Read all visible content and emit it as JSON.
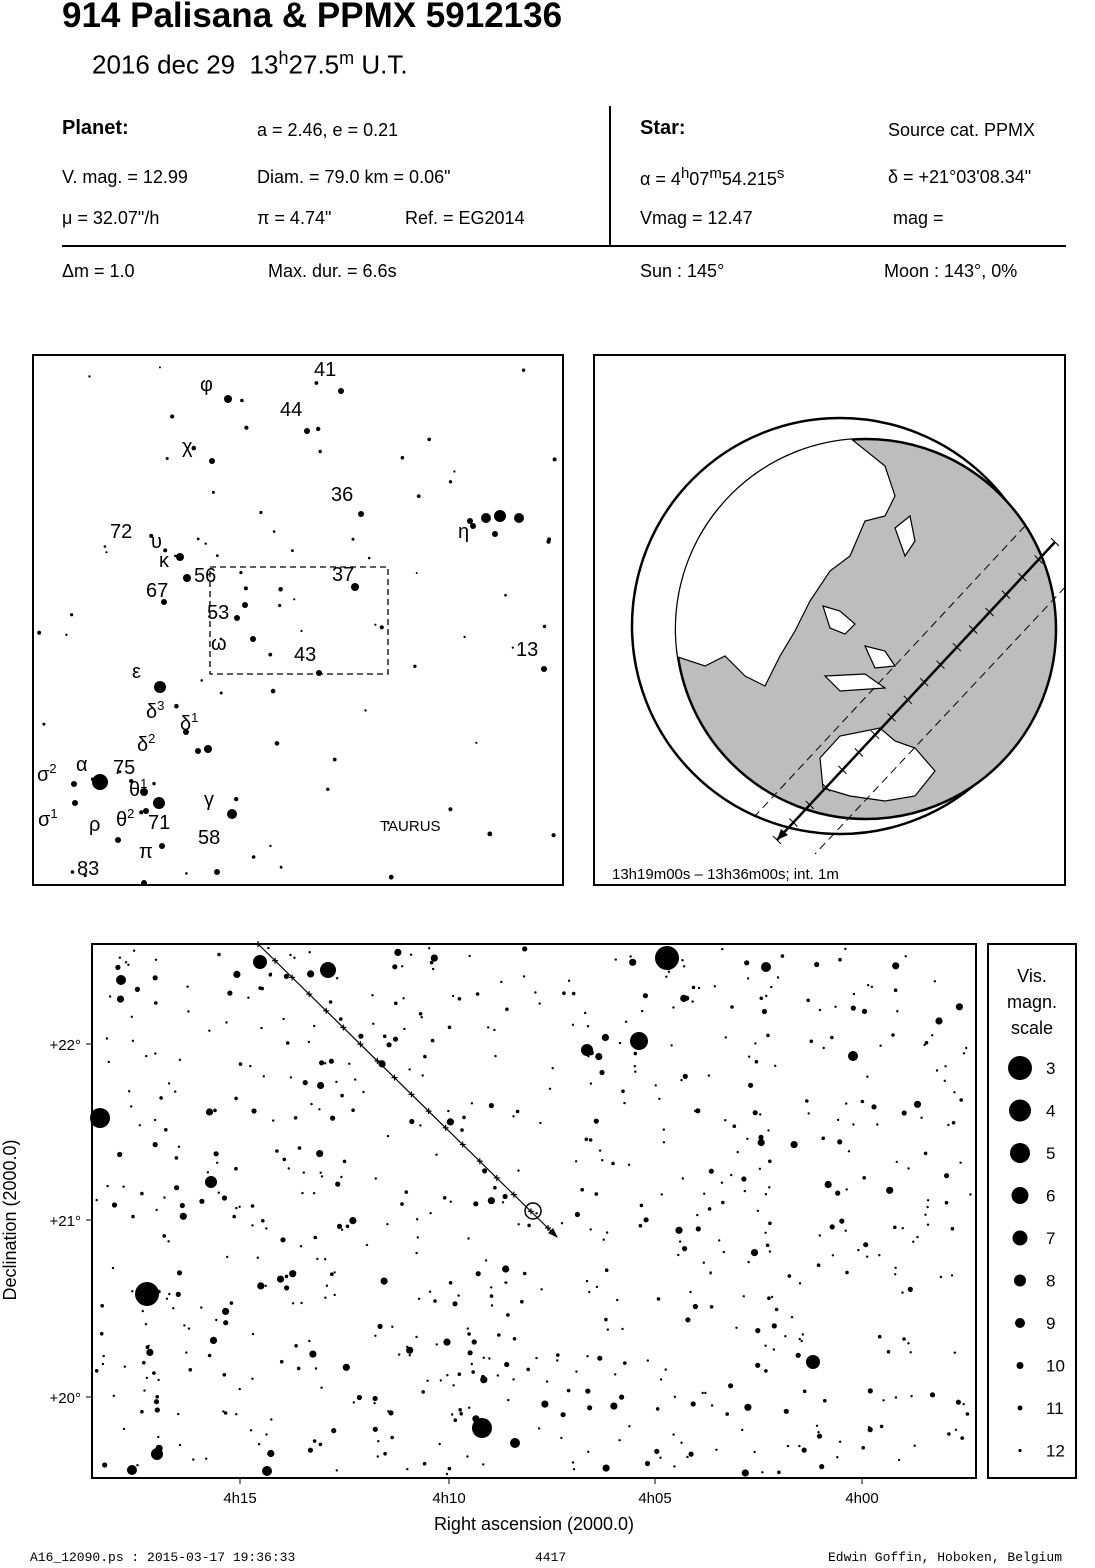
{
  "title": "914 Palisana  &  PPMX 5912136",
  "subtitle": {
    "date": "2016 dec 29",
    "time_h": "13",
    "time_hsup": "h",
    "time_m": "27.5",
    "time_msup": "m",
    "ut": "U.T."
  },
  "planet": {
    "heading": "Planet:",
    "orbit": "a = 2.46, e = 0.21",
    "vmag": "V. mag. = 12.99",
    "diam": "Diam. = 79.0 km = 0.06\"",
    "mu": "μ =  32.07\"/h",
    "pi": "π =  4.74\"",
    "ref": "Ref. = EG2014"
  },
  "star": {
    "heading": "Star:",
    "source": "Source cat.  PPMX",
    "alpha_prefix": "α =  4",
    "alpha_h": "h",
    "alpha_m_val": "07",
    "alpha_m": "m",
    "alpha_s_val": "54.215",
    "alpha_s": "s",
    "delta": "δ = +21°03'08.34\"",
    "vmag": "Vmag = 12.47",
    "mag": "mag ="
  },
  "event": {
    "dm": "Δm = 1.0",
    "maxdur": "Max. dur. = 6.6s",
    "sun": "Sun : 145°",
    "moon": "Moon : 143°,  0%"
  },
  "finder": {
    "constellation": "TAURUS",
    "labels": [
      {
        "t": "φ"
      },
      {
        "t": "41"
      },
      {
        "t": "44"
      },
      {
        "t": "χ"
      },
      {
        "t": "36"
      },
      {
        "t": "η"
      },
      {
        "t": "72"
      },
      {
        "t": "υ"
      },
      {
        "t": "κ"
      },
      {
        "t": "67"
      },
      {
        "t": "56"
      },
      {
        "t": "37"
      },
      {
        "t": "53"
      },
      {
        "t": "ω"
      },
      {
        "t": "43"
      },
      {
        "t": "13"
      },
      {
        "t": "ε"
      },
      {
        "t": "δ3"
      },
      {
        "t": "δ1"
      },
      {
        "t": "δ2"
      },
      {
        "t": "α"
      },
      {
        "t": "σ2"
      },
      {
        "t": "75"
      },
      {
        "t": "θ1"
      },
      {
        "t": "γ"
      },
      {
        "t": "σ1"
      },
      {
        "t": "ρ"
      },
      {
        "t": "θ2"
      },
      {
        "t": "71"
      },
      {
        "t": "58"
      },
      {
        "t": "π"
      },
      {
        "t": "83"
      }
    ]
  },
  "globe": {
    "caption": "13h19m00s – 13h36m00s; int.  1m"
  },
  "chart": {
    "y_ticks": [
      "+22°",
      "+21°",
      "+20°"
    ],
    "x_ticks": [
      "4h15",
      "4h10",
      "4h05",
      "4h00"
    ],
    "xlabel": "Right ascension (2000.0)",
    "ylabel": "Declination (2000.0)"
  },
  "scale": {
    "title1": "Vis.",
    "title2": "magn.",
    "title3": "scale",
    "mags": [
      "3",
      "4",
      "5",
      "6",
      "7",
      "8",
      "9",
      "10",
      "11",
      "12"
    ]
  },
  "footer": {
    "left": "A16_12090.ps : 2015-03-17 19:36:33",
    "mid": "4417",
    "right": "Edwin Goffin, Hoboken, Belgium"
  }
}
